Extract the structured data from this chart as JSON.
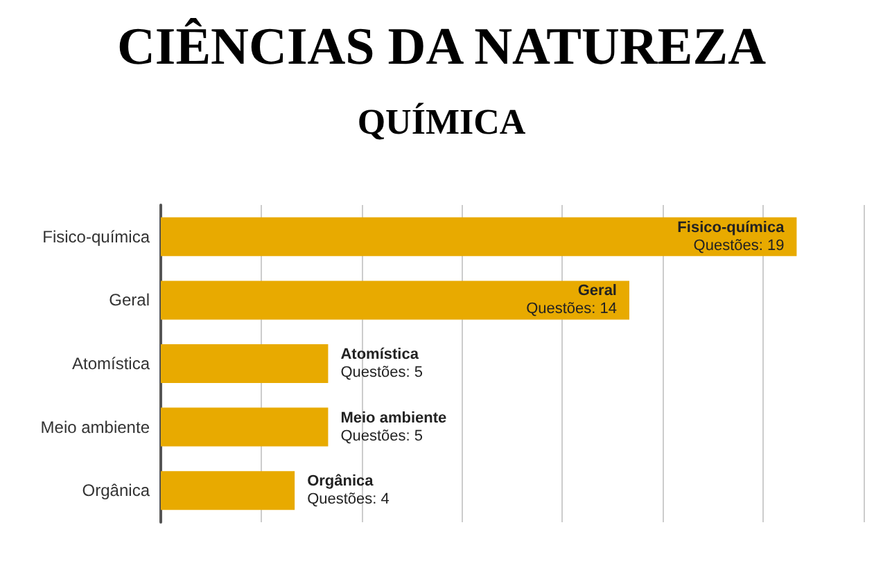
{
  "chart_data": {
    "type": "bar",
    "title": "CIÊNCIAS DA NATUREZA",
    "subtitle": "QUÍMICA",
    "orientation": "horizontal",
    "categories": [
      "Fisico-química",
      "Geral",
      "Atomística",
      "Meio ambiente",
      "Orgânica"
    ],
    "values": [
      19,
      14,
      5,
      5,
      4
    ],
    "color": "#e8aa00",
    "value_labels": [
      "Fisico-química\nQuestões: 19",
      "Geral\nQuestões: 14",
      "Atomística\nQuestões: 5",
      "Meio ambiente\nQuestões: 5",
      "Orgânica\nQuestões: 4"
    ],
    "grid": "x",
    "tick_labels": "y"
  }
}
